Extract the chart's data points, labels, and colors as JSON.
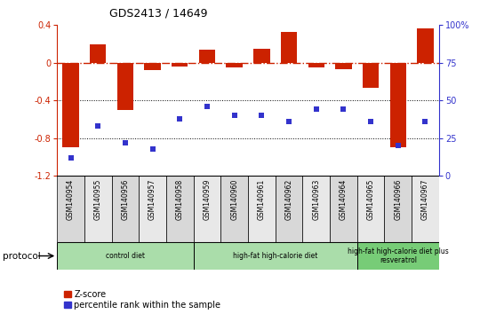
{
  "title": "GDS2413 / 14649",
  "samples": [
    "GSM140954",
    "GSM140955",
    "GSM140956",
    "GSM140957",
    "GSM140958",
    "GSM140959",
    "GSM140960",
    "GSM140961",
    "GSM140962",
    "GSM140963",
    "GSM140964",
    "GSM140965",
    "GSM140966",
    "GSM140967"
  ],
  "zscore": [
    -0.9,
    0.2,
    -0.5,
    -0.08,
    -0.04,
    0.14,
    -0.05,
    0.15,
    0.33,
    -0.05,
    -0.07,
    -0.27,
    -0.9,
    0.37
  ],
  "percentile": [
    12,
    33,
    22,
    18,
    38,
    46,
    40,
    40,
    36,
    44,
    44,
    36,
    20,
    36
  ],
  "bar_color": "#cc2200",
  "dot_color": "#3333cc",
  "zero_line_color": "#cc2200",
  "grid_color": "#000000",
  "ylim_left": [
    -1.2,
    0.4
  ],
  "ylim_right": [
    0,
    100
  ],
  "yticks_left": [
    0.4,
    0.0,
    -0.4,
    -0.8,
    -1.2
  ],
  "ytick_labels_left": [
    "0.4",
    "0",
    "-0.4",
    "-0.8",
    "-1.2"
  ],
  "yticks_right": [
    100,
    75,
    50,
    25,
    0
  ],
  "ytick_labels_right": [
    "100%",
    "75",
    "50",
    "25",
    "0"
  ],
  "hline_positions": [
    -0.4,
    -0.8
  ],
  "protocol_groups": [
    {
      "label": "control diet",
      "start": 0,
      "end": 5,
      "color": "#aaddaa"
    },
    {
      "label": "high-fat high-calorie diet",
      "start": 5,
      "end": 11,
      "color": "#aaddaa"
    },
    {
      "label": "high-fat high-calorie diet plus\nresveratrol",
      "start": 11,
      "end": 14,
      "color": "#77cc77"
    }
  ],
  "legend_zscore_label": "Z-score",
  "legend_pct_label": "percentile rank within the sample",
  "protocol_label": "protocol"
}
